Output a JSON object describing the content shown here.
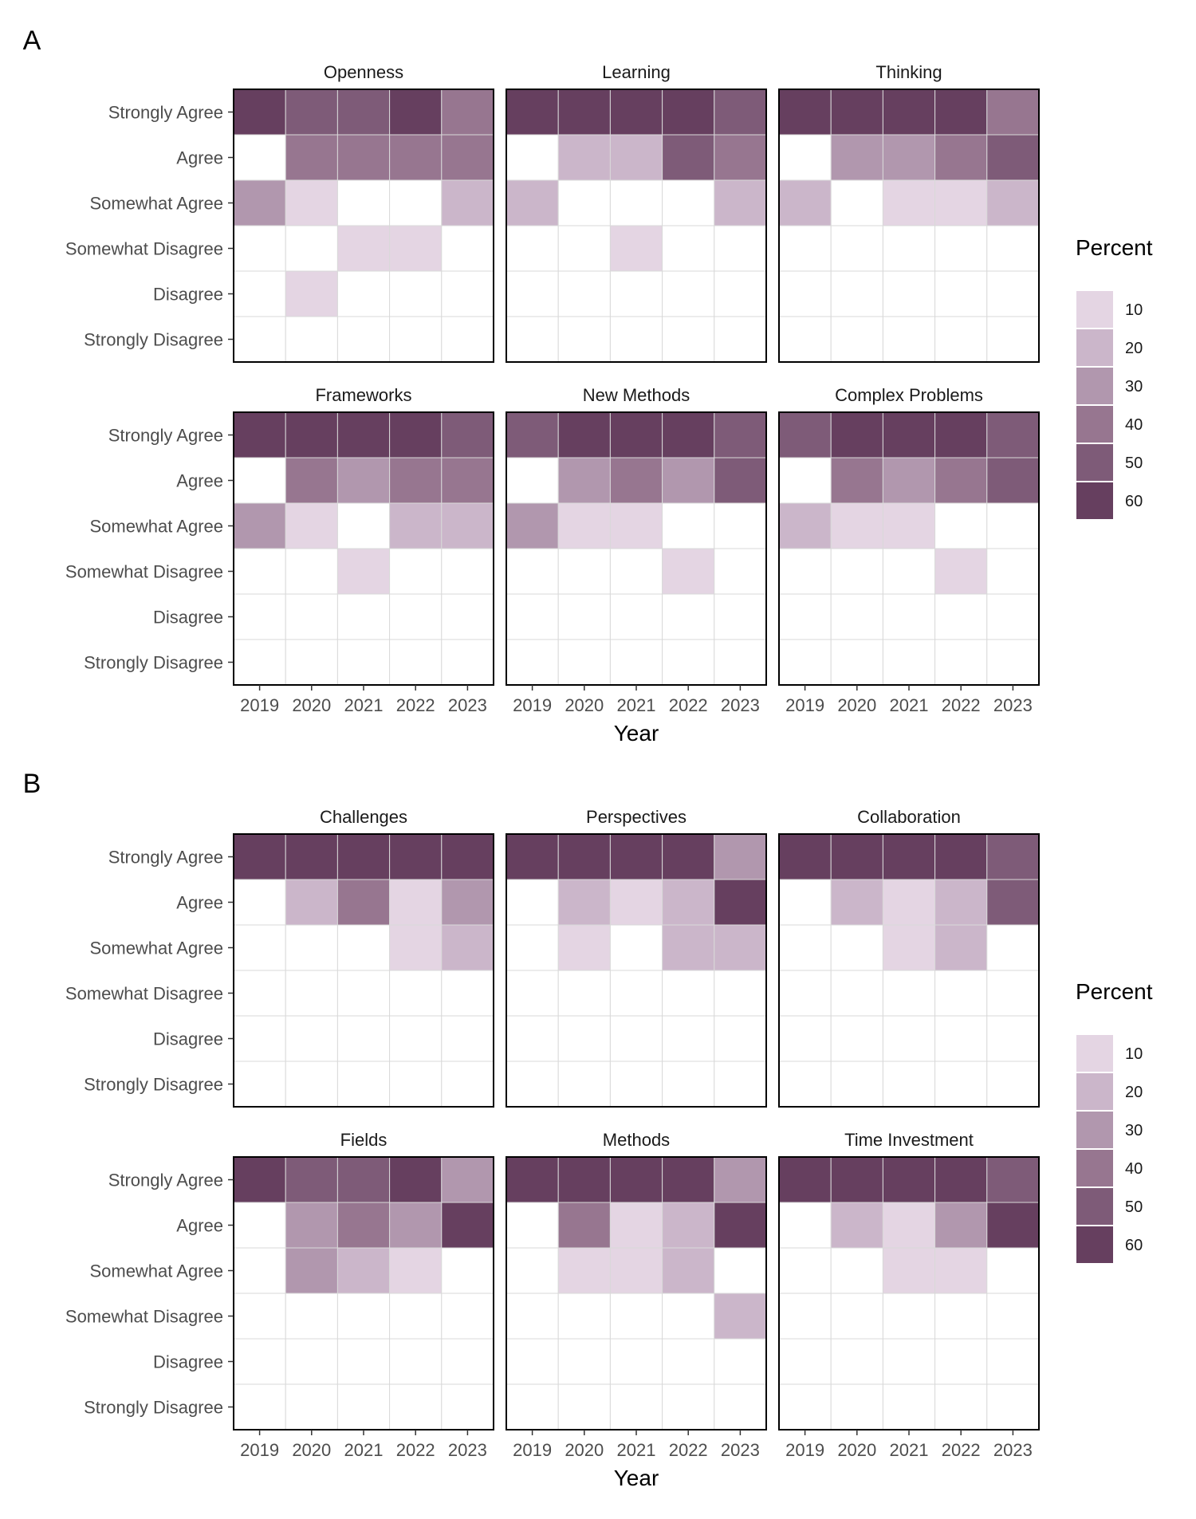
{
  "colors": {
    "scale": [
      "#ffffff",
      "#e4d5e3",
      "#cbb6ca",
      "#b197ae",
      "#977690",
      "#7e5b78",
      "#663f5f"
    ],
    "border": "#000000",
    "grid": "#d9d9d9"
  },
  "x_title": "Year",
  "legend": {
    "title": "Percent",
    "labels": [
      "10",
      "20",
      "30",
      "40",
      "50",
      "60"
    ],
    "colors": [
      "#e4d5e3",
      "#cbb6ca",
      "#b197ae",
      "#977690",
      "#7e5b78",
      "#663f5f"
    ]
  },
  "chart_data": [
    {
      "type": "heatmap",
      "panel_label": "A",
      "years": [
        "2019",
        "2020",
        "2021",
        "2022",
        "2023"
      ],
      "responses": [
        "Strongly Agree",
        "Agree",
        "Somewhat Agree",
        "Somewhat Disagree",
        "Disagree",
        "Strongly Disagree"
      ],
      "x_title": "Year",
      "legend_title": "Percent",
      "legend_ticks": [
        10,
        20,
        30,
        40,
        50,
        60
      ],
      "facets": [
        {
          "title": "Openness",
          "values": [
            [
              62,
              50,
              50,
              60,
              40
            ],
            [
              0,
              40,
              40,
              40,
              40
            ],
            [
              30,
              10,
              0,
              0,
              20
            ],
            [
              0,
              0,
              10,
              10,
              0
            ],
            [
              0,
              10,
              0,
              0,
              0
            ],
            [
              0,
              0,
              0,
              0,
              0
            ]
          ]
        },
        {
          "title": "Learning",
          "values": [
            [
              62,
              60,
              60,
              60,
              50
            ],
            [
              0,
              20,
              20,
              50,
              40
            ],
            [
              20,
              0,
              0,
              0,
              20
            ],
            [
              0,
              0,
              10,
              0,
              0
            ],
            [
              0,
              0,
              0,
              0,
              0
            ],
            [
              0,
              0,
              0,
              0,
              0
            ]
          ]
        },
        {
          "title": "Thinking",
          "values": [
            [
              62,
              60,
              60,
              60,
              40
            ],
            [
              0,
              30,
              30,
              40,
              50
            ],
            [
              20,
              0,
              10,
              10,
              20
            ],
            [
              0,
              0,
              0,
              0,
              0
            ],
            [
              0,
              0,
              0,
              0,
              0
            ],
            [
              0,
              0,
              0,
              0,
              0
            ]
          ]
        },
        {
          "title": "Frameworks",
          "values": [
            [
              62,
              60,
              60,
              60,
              50
            ],
            [
              0,
              40,
              30,
              40,
              40
            ],
            [
              30,
              10,
              0,
              20,
              20
            ],
            [
              0,
              0,
              10,
              0,
              0
            ],
            [
              0,
              0,
              0,
              0,
              0
            ],
            [
              0,
              0,
              0,
              0,
              0
            ]
          ]
        },
        {
          "title": "New Methods",
          "values": [
            [
              50,
              60,
              60,
              60,
              50
            ],
            [
              0,
              30,
              40,
              30,
              50
            ],
            [
              30,
              10,
              10,
              0,
              0
            ],
            [
              0,
              0,
              0,
              10,
              0
            ],
            [
              0,
              0,
              0,
              0,
              0
            ],
            [
              0,
              0,
              0,
              0,
              0
            ]
          ]
        },
        {
          "title": "Complex Problems",
          "values": [
            [
              50,
              60,
              60,
              60,
              50
            ],
            [
              0,
              40,
              30,
              40,
              50
            ],
            [
              20,
              10,
              10,
              0,
              0
            ],
            [
              0,
              0,
              0,
              10,
              0
            ],
            [
              0,
              0,
              0,
              0,
              0
            ],
            [
              0,
              0,
              0,
              0,
              0
            ]
          ]
        }
      ]
    },
    {
      "type": "heatmap",
      "panel_label": "B",
      "years": [
        "2019",
        "2020",
        "2021",
        "2022",
        "2023"
      ],
      "responses": [
        "Strongly Agree",
        "Agree",
        "Somewhat Agree",
        "Somewhat Disagree",
        "Disagree",
        "Strongly Disagree"
      ],
      "x_title": "Year",
      "legend_title": "Percent",
      "legend_ticks": [
        10,
        20,
        30,
        40,
        50,
        60
      ],
      "facets": [
        {
          "title": "Challenges",
          "values": [
            [
              62,
              60,
              60,
              60,
              60
            ],
            [
              0,
              20,
              40,
              10,
              30
            ],
            [
              0,
              0,
              0,
              10,
              20
            ],
            [
              0,
              0,
              0,
              0,
              0
            ],
            [
              0,
              0,
              0,
              0,
              0
            ],
            [
              0,
              0,
              0,
              0,
              0
            ]
          ]
        },
        {
          "title": "Perspectives",
          "values": [
            [
              62,
              60,
              60,
              60,
              30
            ],
            [
              0,
              20,
              10,
              20,
              60
            ],
            [
              0,
              10,
              0,
              20,
              20
            ],
            [
              0,
              0,
              0,
              0,
              0
            ],
            [
              0,
              0,
              0,
              0,
              0
            ],
            [
              0,
              0,
              0,
              0,
              0
            ]
          ]
        },
        {
          "title": "Collaboration",
          "values": [
            [
              62,
              60,
              60,
              60,
              50
            ],
            [
              0,
              20,
              10,
              20,
              50
            ],
            [
              0,
              0,
              10,
              20,
              0
            ],
            [
              0,
              0,
              0,
              0,
              0
            ],
            [
              0,
              0,
              0,
              0,
              0
            ],
            [
              0,
              0,
              0,
              0,
              0
            ]
          ]
        },
        {
          "title": "Fields",
          "values": [
            [
              62,
              50,
              50,
              60,
              30
            ],
            [
              0,
              30,
              40,
              30,
              60
            ],
            [
              0,
              30,
              20,
              10,
              0
            ],
            [
              0,
              0,
              0,
              0,
              0
            ],
            [
              0,
              0,
              0,
              0,
              0
            ],
            [
              0,
              0,
              0,
              0,
              0
            ]
          ]
        },
        {
          "title": "Methods",
          "values": [
            [
              62,
              60,
              60,
              60,
              30
            ],
            [
              0,
              40,
              10,
              20,
              60
            ],
            [
              0,
              10,
              10,
              20,
              0
            ],
            [
              0,
              0,
              0,
              0,
              20
            ],
            [
              0,
              0,
              0,
              0,
              0
            ],
            [
              0,
              0,
              0,
              0,
              0
            ]
          ]
        },
        {
          "title": "Time Investment",
          "values": [
            [
              62,
              60,
              60,
              60,
              50
            ],
            [
              0,
              20,
              10,
              30,
              60
            ],
            [
              0,
              0,
              10,
              10,
              0
            ],
            [
              0,
              0,
              0,
              0,
              0
            ],
            [
              0,
              0,
              0,
              0,
              0
            ],
            [
              0,
              0,
              0,
              0,
              0
            ]
          ]
        }
      ]
    }
  ]
}
